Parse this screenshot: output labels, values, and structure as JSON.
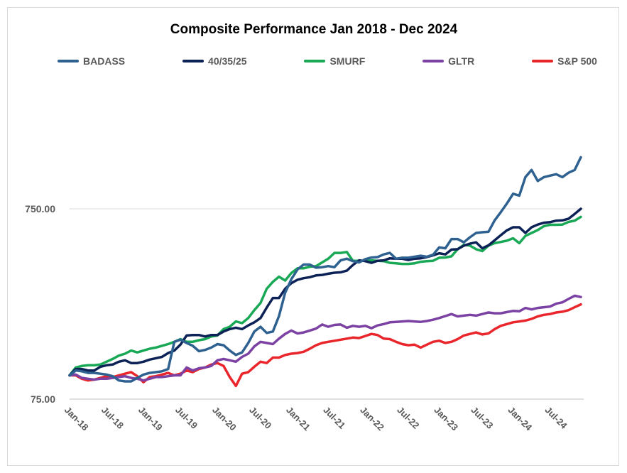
{
  "chart_data": {
    "type": "line",
    "title": "Composite Performance Jan 2018 - Dec 2024",
    "xlabel": "",
    "ylabel": "",
    "y_scale": "log",
    "y_ticks": [
      75,
      750
    ],
    "y_tick_labels": [
      "75.00",
      "750.00"
    ],
    "ylim": [
      75,
      1800
    ],
    "grid": "horizontal",
    "legend_position": "top",
    "x_tick_labels": [
      "Jan-18",
      "Jul-18",
      "Jan-19",
      "Jul-19",
      "Jan-20",
      "Jul-20",
      "Jan-21",
      "Jul-21",
      "Jan-22",
      "Jul-22",
      "Jan-23",
      "Jul-23",
      "Jan-24",
      "Jul-24"
    ],
    "x_anchor_values": [
      {
        "month": "Jan-18",
        "value_index": 0
      },
      {
        "month": "Jul-18",
        "value_index": 6
      },
      {
        "month": "Jan-19",
        "value_index": 12
      },
      {
        "month": "Jul-19",
        "value_index": 18
      },
      {
        "month": "Jan-20",
        "value_index": 24
      },
      {
        "month": "Jul-20",
        "value_index": 30
      },
      {
        "month": "Jan-21",
        "value_index": 36
      },
      {
        "month": "Jul-21",
        "value_index": 42
      },
      {
        "month": "Jan-22",
        "value_index": 48
      },
      {
        "month": "Jul-22",
        "value_index": 54
      },
      {
        "month": "Jan-23",
        "value_index": 60
      },
      {
        "month": "Jul-23",
        "value_index": 66
      },
      {
        "month": "Jan-24",
        "value_index": 72
      },
      {
        "month": "Jul-24",
        "value_index": 78
      }
    ],
    "series": [
      {
        "name": "BADASS",
        "color": "#2e6190",
        "values": [
          100,
          106,
          105,
          103,
          103,
          102,
          101,
          99,
          94,
          93,
          93,
          97,
          101,
          103,
          104,
          105,
          108,
          150,
          154,
          148,
          143,
          134,
          136,
          140,
          146,
          144,
          135,
          128,
          132,
          148,
          170,
          180,
          167,
          170,
          205,
          272,
          320,
          360,
          382,
          382,
          368,
          370,
          375,
          370,
          402,
          410,
          398,
          392,
          408,
          416,
          418,
          432,
          440,
          410,
          415,
          415,
          420,
          425,
          420,
          430,
          470,
          465,
          520,
          520,
          500,
          532,
          560,
          565,
          568,
          652,
          720,
          800,
          900,
          880,
          1100,
          1200,
          1050,
          1100,
          1120,
          1140,
          1100,
          1160,
          1200,
          1400
        ]
      },
      {
        "name": "40/35/25",
        "color": "#0c2155",
        "values": [
          100,
          108,
          108,
          106,
          106,
          111,
          113,
          114,
          118,
          120,
          116,
          116,
          118,
          121,
          123,
          125,
          131,
          135,
          145,
          162,
          163,
          163,
          160,
          163,
          163,
          170,
          175,
          178,
          175,
          183,
          190,
          200,
          227,
          255,
          255,
          285,
          305,
          318,
          324,
          328,
          335,
          337,
          342,
          346,
          348,
          355,
          380,
          402,
          398,
          390,
          400,
          402,
          412,
          410,
          410,
          404,
          410,
          412,
          418,
          427,
          438,
          432,
          458,
          460,
          480,
          492,
          500,
          465,
          482,
          512,
          545,
          578,
          600,
          600,
          560,
          600,
          620,
          634,
          638,
          650,
          652,
          665,
          705,
          750
        ]
      },
      {
        "name": "SMURF",
        "color": "#19a855",
        "values": [
          100,
          110,
          112,
          113,
          113,
          114,
          118,
          122,
          127,
          130,
          135,
          132,
          135,
          138,
          140,
          143,
          146,
          150,
          155,
          150,
          150,
          153,
          155,
          160,
          162,
          175,
          180,
          192,
          188,
          200,
          220,
          240,
          285,
          310,
          330,
          315,
          345,
          365,
          365,
          372,
          375,
          392,
          410,
          440,
          440,
          445,
          400,
          400,
          400,
          402,
          400,
          398,
          390,
          388,
          385,
          385,
          388,
          395,
          398,
          400,
          415,
          416,
          422,
          460,
          485,
          480,
          460,
          450,
          480,
          495,
          502,
          510,
          525,
          495,
          540,
          560,
          580,
          608,
          618,
          618,
          620,
          640,
          650,
          680
        ]
      },
      {
        "name": "GLTR",
        "color": "#7b42a3",
        "values": [
          100,
          101,
          97,
          96,
          95,
          96,
          96,
          97,
          98,
          99,
          97,
          96,
          94,
          96,
          98,
          98,
          99,
          100,
          100,
          110,
          106,
          109,
          110,
          112,
          120,
          122,
          120,
          118,
          125,
          130,
          142,
          150,
          148,
          146,
          156,
          165,
          172,
          166,
          168,
          172,
          176,
          185,
          180,
          184,
          185,
          178,
          182,
          180,
          182,
          177,
          183,
          186,
          190,
          191,
          192,
          193,
          192,
          191,
          193,
          196,
          200,
          205,
          210,
          204,
          206,
          208,
          206,
          210,
          214,
          212,
          212,
          215,
          218,
          217,
          226,
          222,
          226,
          228,
          230,
          238,
          242,
          252,
          262,
          258
        ]
      },
      {
        "name": "S&P 500",
        "color": "#e8262b",
        "values": [
          100,
          100,
          96,
          94,
          95,
          97,
          99,
          98,
          100,
          102,
          104,
          99,
          92,
          98,
          99,
          101,
          103,
          100,
          102,
          106,
          104,
          108,
          110,
          114,
          116,
          112,
          98,
          88,
          102,
          104,
          111,
          118,
          116,
          124,
          124,
          128,
          130,
          131,
          133,
          138,
          144,
          148,
          150,
          152,
          154,
          156,
          158,
          157,
          161,
          165,
          163,
          156,
          155,
          150,
          146,
          144,
          145,
          140,
          145,
          150,
          152,
          148,
          150,
          155,
          162,
          165,
          168,
          164,
          166,
          175,
          182,
          186,
          190,
          192,
          194,
          198,
          204,
          208,
          210,
          214,
          216,
          220,
          228,
          236
        ]
      }
    ]
  }
}
